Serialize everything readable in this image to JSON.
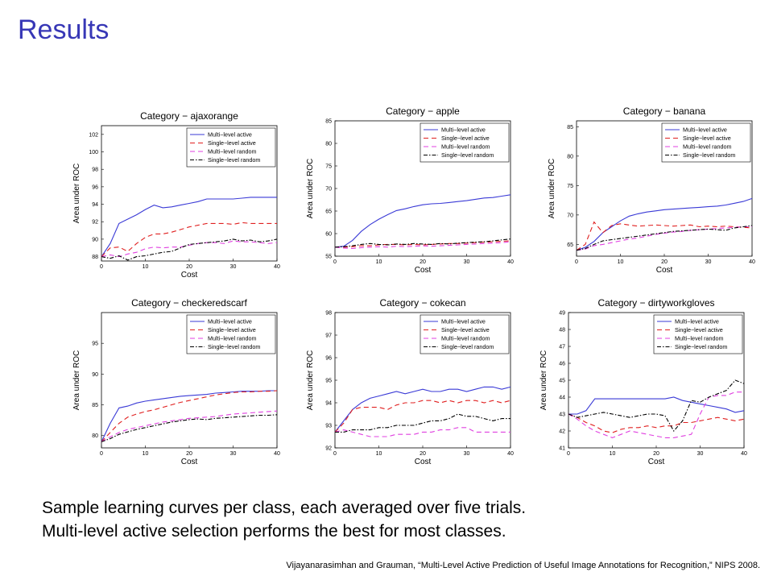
{
  "slide": {
    "title": "Results",
    "caption_lines": [
      "Sample learning curves per class, each averaged over five trials.",
      "Multi-level active selection performs the best for most classes."
    ],
    "citation": "Vijayanarasimhan and Grauman, “Multi-Level Active Prediction of Useful Image Annotations for Recognition,” NIPS 2008."
  },
  "series_styles": [
    {
      "color": "#3a3ad6",
      "dash": "none"
    },
    {
      "color": "#e02020",
      "dash": "6,4"
    },
    {
      "color": "#e040e0",
      "dash": "6,4"
    },
    {
      "color": "#000000",
      "dash": "5,2,1.5,2"
    }
  ],
  "chart_data": [
    {
      "type": "line",
      "title": "Category − ajaxorange",
      "xlabel": "Cost",
      "ylabel": "Area under ROC",
      "xlim": [
        0,
        40
      ],
      "ylim": [
        87.5,
        103
      ],
      "xticks": [
        0,
        10,
        20,
        30,
        40
      ],
      "yticks": [
        88,
        90,
        92,
        94,
        96,
        98,
        100,
        102
      ],
      "grid": false,
      "legend": "top-right",
      "x": [
        0,
        2,
        4,
        6,
        8,
        10,
        12,
        14,
        16,
        18,
        20,
        22,
        24,
        26,
        28,
        30,
        32,
        34,
        36,
        38,
        40
      ],
      "series": [
        {
          "name": "Multi−level active",
          "values": [
            88,
            89.5,
            91.8,
            92.3,
            92.8,
            93.4,
            93.9,
            93.6,
            93.7,
            93.9,
            94.1,
            94.3,
            94.6,
            94.6,
            94.6,
            94.6,
            94.7,
            94.8,
            94.8,
            94.8,
            94.8
          ]
        },
        {
          "name": "Single−level active",
          "values": [
            88,
            89.0,
            89.1,
            88.6,
            89.5,
            90.2,
            90.6,
            90.6,
            90.8,
            91.1,
            91.4,
            91.6,
            91.8,
            91.8,
            91.8,
            91.7,
            91.9,
            91.8,
            91.8,
            91.8,
            91.8
          ]
        },
        {
          "name": "Multi−level random",
          "values": [
            88,
            88.2,
            88.0,
            88.3,
            88.5,
            88.9,
            89.1,
            89.0,
            89.1,
            89.1,
            89.3,
            89.5,
            89.6,
            89.6,
            89.5,
            89.8,
            89.7,
            89.7,
            89.6,
            89.5,
            89.6
          ]
        },
        {
          "name": "Single−level random",
          "values": [
            88,
            87.8,
            88.1,
            87.6,
            88.0,
            88.1,
            88.3,
            88.5,
            88.6,
            89.0,
            89.4,
            89.5,
            89.6,
            89.7,
            89.8,
            90.0,
            89.8,
            89.9,
            89.7,
            89.8,
            90.0
          ]
        }
      ]
    },
    {
      "type": "line",
      "title": "Category − apple",
      "xlabel": "Cost",
      "ylabel": "Area under ROC",
      "xlim": [
        0,
        40
      ],
      "ylim": [
        55,
        85
      ],
      "xticks": [
        0,
        10,
        20,
        30,
        40
      ],
      "yticks": [
        55,
        60,
        65,
        70,
        75,
        80,
        85
      ],
      "grid": false,
      "legend": "top-right",
      "x": [
        0,
        2,
        4,
        6,
        8,
        10,
        12,
        14,
        16,
        18,
        20,
        22,
        24,
        26,
        28,
        30,
        32,
        34,
        36,
        38,
        40
      ],
      "series": [
        {
          "name": "Multi−level active",
          "values": [
            57,
            57.2,
            58.5,
            60.5,
            62.0,
            63.2,
            64.2,
            65.1,
            65.5,
            66.0,
            66.4,
            66.6,
            66.7,
            66.9,
            67.1,
            67.3,
            67.6,
            67.9,
            68.0,
            68.3,
            68.6
          ]
        },
        {
          "name": "Single−level active",
          "values": [
            57,
            57.0,
            57.1,
            57.3,
            57.3,
            57.5,
            57.6,
            57.6,
            57.5,
            57.6,
            57.5,
            57.6,
            57.7,
            57.8,
            57.8,
            57.9,
            58.0,
            58.1,
            58.2,
            58.3,
            58.4
          ]
        },
        {
          "name": "Multi−level random",
          "values": [
            57,
            56.8,
            56.7,
            56.9,
            57.0,
            57.1,
            57.0,
            57.2,
            57.1,
            57.2,
            57.3,
            57.2,
            57.3,
            57.4,
            57.5,
            57.6,
            57.7,
            57.8,
            57.9,
            58.0,
            58.2
          ]
        },
        {
          "name": "Single−level random",
          "values": [
            57,
            57.1,
            57.3,
            57.6,
            57.8,
            57.6,
            57.5,
            57.7,
            57.6,
            57.8,
            57.7,
            57.6,
            57.8,
            57.7,
            57.9,
            58.0,
            58.1,
            58.2,
            58.4,
            58.6,
            58.8
          ]
        }
      ]
    },
    {
      "type": "line",
      "title": "Category − banana",
      "xlabel": "Cost",
      "ylabel": "Area under ROC",
      "xlim": [
        0,
        40
      ],
      "ylim": [
        63,
        86
      ],
      "xticks": [
        0,
        10,
        20,
        30,
        40
      ],
      "yticks": [
        65,
        70,
        75,
        80,
        85
      ],
      "grid": false,
      "legend": "top-right",
      "x": [
        0,
        2,
        4,
        6,
        8,
        10,
        12,
        14,
        16,
        18,
        20,
        22,
        24,
        26,
        28,
        30,
        32,
        34,
        36,
        38,
        40
      ],
      "series": [
        {
          "name": "Multi−level active",
          "values": [
            64,
            64.5,
            65.5,
            67.0,
            68.0,
            69.0,
            69.8,
            70.2,
            70.5,
            70.7,
            70.9,
            71.0,
            71.1,
            71.2,
            71.3,
            71.4,
            71.5,
            71.7,
            72.0,
            72.3,
            72.8
          ]
        },
        {
          "name": "Single−level active",
          "values": [
            64,
            65.0,
            68.8,
            67.0,
            68.2,
            68.5,
            68.3,
            68.1,
            68.2,
            68.3,
            68.2,
            68.1,
            68.2,
            68.3,
            68.0,
            68.1,
            68.0,
            68.1,
            68.0,
            67.9,
            67.8
          ]
        },
        {
          "name": "Multi−level random",
          "values": [
            64,
            64.2,
            64.8,
            65.0,
            65.3,
            65.6,
            65.9,
            66.1,
            66.4,
            66.7,
            66.9,
            67.1,
            67.2,
            67.4,
            67.5,
            67.6,
            67.7,
            67.8,
            67.9,
            68.0,
            68.0
          ]
        },
        {
          "name": "Single−level random",
          "values": [
            64,
            64.3,
            65.0,
            65.6,
            65.8,
            66.0,
            66.2,
            66.4,
            66.6,
            66.8,
            67.0,
            67.2,
            67.3,
            67.4,
            67.5,
            67.6,
            67.5,
            67.4,
            67.8,
            68.0,
            68.2
          ]
        }
      ]
    },
    {
      "type": "line",
      "title": "Category − checkeredscarf",
      "xlabel": "Cost",
      "ylabel": "Area under ROC",
      "xlim": [
        0,
        40
      ],
      "ylim": [
        78,
        100
      ],
      "xticks": [
        0,
        10,
        20,
        30,
        40
      ],
      "yticks": [
        80,
        85,
        90,
        95
      ],
      "grid": false,
      "legend": "top-right",
      "x": [
        0,
        2,
        4,
        6,
        8,
        10,
        12,
        14,
        16,
        18,
        20,
        22,
        24,
        26,
        28,
        30,
        32,
        34,
        36,
        38,
        40
      ],
      "series": [
        {
          "name": "Multi−level active",
          "values": [
            79,
            82.0,
            84.5,
            84.8,
            85.3,
            85.6,
            85.8,
            86.0,
            86.2,
            86.4,
            86.5,
            86.6,
            86.7,
            86.9,
            87.0,
            87.1,
            87.2,
            87.2,
            87.2,
            87.3,
            87.3
          ]
        },
        {
          "name": "Single−level active",
          "values": [
            79,
            80.5,
            82.0,
            83.0,
            83.5,
            83.9,
            84.2,
            84.6,
            85.0,
            85.4,
            85.7,
            86.0,
            86.3,
            86.6,
            86.8,
            87.0,
            87.1,
            87.1,
            87.2,
            87.2,
            87.3
          ]
        },
        {
          "name": "Multi−level random",
          "values": [
            79,
            79.8,
            80.5,
            81.0,
            81.3,
            81.6,
            81.9,
            82.2,
            82.4,
            82.6,
            82.8,
            82.9,
            83.0,
            83.1,
            83.3,
            83.5,
            83.6,
            83.7,
            83.8,
            83.9,
            84.0
          ]
        },
        {
          "name": "Single−level random",
          "values": [
            79,
            79.5,
            80.2,
            80.6,
            81.0,
            81.3,
            81.6,
            81.9,
            82.2,
            82.4,
            82.6,
            82.7,
            82.6,
            82.8,
            82.9,
            83.0,
            83.1,
            83.2,
            83.3,
            83.3,
            83.4
          ]
        }
      ]
    },
    {
      "type": "line",
      "title": "Category − cokecan",
      "xlabel": "Cost",
      "ylabel": "Area under ROC",
      "xlim": [
        0,
        40
      ],
      "ylim": [
        92,
        98
      ],
      "xticks": [
        0,
        10,
        20,
        30,
        40
      ],
      "yticks": [
        92,
        93,
        94,
        95,
        96,
        97,
        98
      ],
      "grid": false,
      "legend": "top-right",
      "x": [
        0,
        2,
        4,
        6,
        8,
        10,
        12,
        14,
        16,
        18,
        20,
        22,
        24,
        26,
        28,
        30,
        32,
        34,
        36,
        38,
        40
      ],
      "series": [
        {
          "name": "Multi−level active",
          "values": [
            92.7,
            93.2,
            93.7,
            94.0,
            94.2,
            94.3,
            94.4,
            94.5,
            94.4,
            94.5,
            94.6,
            94.5,
            94.5,
            94.6,
            94.6,
            94.5,
            94.6,
            94.7,
            94.7,
            94.6,
            94.7
          ]
        },
        {
          "name": "Single−level active",
          "values": [
            92.7,
            93.1,
            93.7,
            93.8,
            93.8,
            93.8,
            93.7,
            93.9,
            94.0,
            94.0,
            94.1,
            94.1,
            94.0,
            94.1,
            94.0,
            94.1,
            94.1,
            94.0,
            94.1,
            94.0,
            94.1
          ]
        },
        {
          "name": "Multi−level random",
          "values": [
            92.7,
            92.8,
            92.7,
            92.6,
            92.5,
            92.5,
            92.5,
            92.6,
            92.6,
            92.6,
            92.7,
            92.7,
            92.8,
            92.8,
            92.9,
            92.9,
            92.7,
            92.7,
            92.7,
            92.7,
            92.7
          ]
        },
        {
          "name": "Single−level random",
          "values": [
            92.7,
            92.7,
            92.8,
            92.8,
            92.8,
            92.9,
            92.9,
            93.0,
            93.0,
            93.0,
            93.1,
            93.2,
            93.2,
            93.3,
            93.5,
            93.4,
            93.4,
            93.3,
            93.2,
            93.3,
            93.3
          ]
        }
      ]
    },
    {
      "type": "line",
      "title": "Category − dirtyworkgloves",
      "xlabel": "Cost",
      "ylabel": "Area under ROC",
      "xlim": [
        0,
        40
      ],
      "ylim": [
        41,
        49
      ],
      "xticks": [
        0,
        10,
        20,
        30,
        40
      ],
      "yticks": [
        41,
        42,
        43,
        44,
        45,
        46,
        47,
        48,
        49
      ],
      "grid": false,
      "legend": "top-right",
      "x": [
        0,
        2,
        4,
        6,
        8,
        10,
        12,
        14,
        16,
        18,
        20,
        22,
        24,
        26,
        28,
        30,
        32,
        34,
        36,
        38,
        40
      ],
      "series": [
        {
          "name": "Multi−level active",
          "values": [
            43.0,
            43.0,
            43.2,
            43.9,
            43.9,
            43.9,
            43.9,
            43.9,
            43.9,
            43.9,
            43.9,
            43.9,
            44.0,
            43.8,
            43.7,
            43.6,
            43.5,
            43.4,
            43.3,
            43.1,
            43.2
          ]
        },
        {
          "name": "Single−level active",
          "values": [
            43.0,
            42.8,
            42.5,
            42.3,
            42.0,
            41.9,
            42.1,
            42.2,
            42.2,
            42.3,
            42.2,
            42.3,
            42.3,
            42.5,
            42.5,
            42.6,
            42.7,
            42.8,
            42.7,
            42.6,
            42.7
          ]
        },
        {
          "name": "Multi−level random",
          "values": [
            43.0,
            42.7,
            42.3,
            42.0,
            41.8,
            41.6,
            41.8,
            42.0,
            41.9,
            41.8,
            41.7,
            41.6,
            41.6,
            41.7,
            41.8,
            43.0,
            44.0,
            44.1,
            44.1,
            44.3,
            44.3
          ]
        },
        {
          "name": "Single−level random",
          "values": [
            43.0,
            42.8,
            42.9,
            43.0,
            43.1,
            43.0,
            42.9,
            42.8,
            42.9,
            43.0,
            43.0,
            42.9,
            42.0,
            42.6,
            43.8,
            43.7,
            44.0,
            44.2,
            44.4,
            45.0,
            44.8
          ]
        }
      ]
    }
  ]
}
